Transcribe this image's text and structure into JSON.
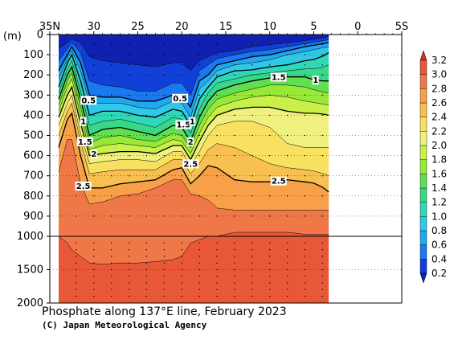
{
  "chart_data": {
    "type": "heatmap",
    "title": "Phosphate along 137°E line, February 2023",
    "credit": "(C) Japan Meteorological Agency",
    "xlabel": "",
    "ylabel": "(m)",
    "x_ticks": [
      {
        "lat": 35,
        "label": "35N"
      },
      {
        "lat": 30,
        "label": "30"
      },
      {
        "lat": 25,
        "label": "25"
      },
      {
        "lat": 20,
        "label": "20"
      },
      {
        "lat": 15,
        "label": "15"
      },
      {
        "lat": 10,
        "label": "10"
      },
      {
        "lat": 5,
        "label": "5"
      },
      {
        "lat": 0,
        "label": "0"
      },
      {
        "lat": -5,
        "label": "5S"
      }
    ],
    "y_ticks_upper": [
      {
        "depth": 0,
        "label": "0"
      },
      {
        "depth": 100,
        "label": "100"
      },
      {
        "depth": 200,
        "label": "200"
      },
      {
        "depth": 300,
        "label": "300"
      },
      {
        "depth": 400,
        "label": "400"
      },
      {
        "depth": 500,
        "label": "500"
      },
      {
        "depth": 600,
        "label": "600"
      },
      {
        "depth": 700,
        "label": "700"
      },
      {
        "depth": 800,
        "label": "800"
      },
      {
        "depth": 900,
        "label": "900"
      },
      {
        "depth": 1000,
        "label": "1000"
      }
    ],
    "y_ticks_lower": [
      {
        "depth": 1500,
        "label": "1500"
      },
      {
        "depth": 2000,
        "label": "2000"
      }
    ],
    "colorbar": {
      "levels": [
        0.2,
        0.4,
        0.6,
        0.8,
        1.0,
        1.2,
        1.4,
        1.6,
        1.8,
        2.0,
        2.2,
        2.4,
        2.6,
        2.8,
        3.0,
        3.2
      ],
      "labels": [
        "0.2",
        "0.4",
        "0.6",
        "0.8",
        "1.0",
        "1.2",
        "1.4",
        "1.6",
        "1.8",
        "2.0",
        "2.2",
        "2.4",
        "2.6",
        "2.8",
        "3.0",
        "3.2"
      ],
      "colors": [
        "#1040d8",
        "#1a78f0",
        "#20a8f0",
        "#30c8e8",
        "#30d8b8",
        "#38d888",
        "#60e050",
        "#98e838",
        "#c8f048",
        "#f0f080",
        "#f8e060",
        "#f8c050",
        "#f8a048",
        "#f07848",
        "#e85838"
      ],
      "under_color": "#1020b0",
      "over_color": "#d83020"
    },
    "contour_labels": [
      {
        "value": "0.5",
        "lat": 30.6,
        "depth": 340
      },
      {
        "value": "1",
        "lat": 31.2,
        "depth": 445
      },
      {
        "value": "1.5",
        "lat": 31.0,
        "depth": 545
      },
      {
        "value": "2",
        "lat": 30.0,
        "depth": 605
      },
      {
        "value": "2.5",
        "lat": 31.2,
        "depth": 765
      },
      {
        "value": "0.5",
        "lat": 20.2,
        "depth": 330
      },
      {
        "value": "1.5",
        "lat": 19.8,
        "depth": 460
      },
      {
        "value": "1",
        "lat": 18.8,
        "depth": 445
      },
      {
        "value": "2",
        "lat": 19.0,
        "depth": 545
      },
      {
        "value": "2.5",
        "lat": 19.0,
        "depth": 655
      },
      {
        "value": "1.5",
        "lat": 9.0,
        "depth": 225
      },
      {
        "value": "1",
        "lat": 4.8,
        "depth": 240
      },
      {
        "value": "2.5",
        "lat": 9.0,
        "depth": 740
      }
    ],
    "annotations": {
      "lat_start": 34.2,
      "lat_end": 3.3,
      "depth_max": 2000
    }
  }
}
